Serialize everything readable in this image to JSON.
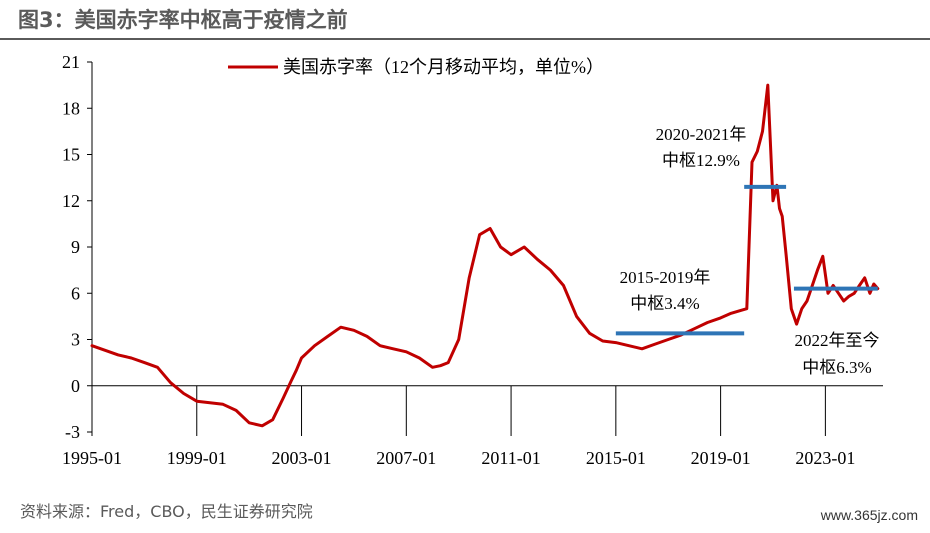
{
  "header": {
    "title": "图3：美国赤字率中枢高于疫情之前"
  },
  "footer": {
    "source": "资料来源：Fred，CBO，民生证券研究院",
    "watermark": "www.365jz.com"
  },
  "colors": {
    "series": "#c00000",
    "median": "#2e75b6",
    "axis": "#000000",
    "title": "#5a5a5a"
  },
  "chart_data": {
    "type": "line",
    "title": "",
    "xlabel": "",
    "ylabel": "",
    "ylim": [
      -3,
      21
    ],
    "y_ticks": [
      "21",
      "18",
      "15",
      "12",
      "9",
      "6",
      "3",
      "0",
      "-3"
    ],
    "x_range": [
      1995.0,
      2025.2
    ],
    "x_ticks": [
      {
        "x": 1995,
        "label": "1995-01"
      },
      {
        "x": 1999,
        "label": "1999-01"
      },
      {
        "x": 2003,
        "label": "2003-01"
      },
      {
        "x": 2007,
        "label": "2007-01"
      },
      {
        "x": 2011,
        "label": "2011-01"
      },
      {
        "x": 2015,
        "label": "2015-01"
      },
      {
        "x": 2019,
        "label": "2019-01"
      },
      {
        "x": 2023,
        "label": "2023-01"
      }
    ],
    "legend": {
      "position": "top",
      "label": "美国赤字率（12个月移动平均，单位%）"
    },
    "grid": false,
    "series": [
      {
        "name": "美国赤字率（12个月移动平均，单位%）",
        "x": [
          1995.0,
          1995.5,
          1996.0,
          1996.5,
          1997.0,
          1997.5,
          1998.0,
          1998.5,
          1999.0,
          1999.5,
          2000.0,
          2000.5,
          2001.0,
          2001.5,
          2001.9,
          2002.3,
          2002.6,
          2002.8,
          2003.0,
          2003.5,
          2004.0,
          2004.5,
          2005.0,
          2005.5,
          2006.0,
          2006.5,
          2007.0,
          2007.5,
          2008.0,
          2008.3,
          2008.6,
          2009.0,
          2009.4,
          2009.8,
          2010.2,
          2010.6,
          2011.0,
          2011.5,
          2012.0,
          2012.5,
          2013.0,
          2013.5,
          2014.0,
          2014.5,
          2015.0,
          2015.5,
          2016.0,
          2016.5,
          2017.0,
          2017.5,
          2018.0,
          2018.5,
          2019.0,
          2019.4,
          2019.8,
          2020.0,
          2020.2,
          2020.4,
          2020.6,
          2020.8,
          2021.0,
          2021.15,
          2021.25,
          2021.35,
          2021.5,
          2021.7,
          2021.9,
          2022.1,
          2022.3,
          2022.5,
          2022.7,
          2022.9,
          2023.1,
          2023.3,
          2023.5,
          2023.7,
          2023.9,
          2024.1,
          2024.3,
          2024.5,
          2024.7,
          2024.85,
          2025.0
        ],
        "y": [
          2.6,
          2.3,
          2.0,
          1.8,
          1.5,
          1.2,
          0.2,
          -0.5,
          -1.0,
          -1.1,
          -1.2,
          -1.6,
          -2.4,
          -2.6,
          -2.2,
          -0.8,
          0.3,
          1.0,
          1.8,
          2.6,
          3.2,
          3.8,
          3.6,
          3.2,
          2.6,
          2.4,
          2.2,
          1.8,
          1.2,
          1.3,
          1.5,
          3.0,
          7.0,
          9.8,
          10.2,
          9.0,
          8.5,
          9.0,
          8.2,
          7.5,
          6.5,
          4.5,
          3.4,
          2.9,
          2.8,
          2.6,
          2.4,
          2.7,
          3.0,
          3.3,
          3.7,
          4.1,
          4.4,
          4.7,
          4.9,
          5.0,
          14.5,
          15.2,
          16.5,
          19.5,
          12.0,
          13.0,
          11.5,
          11.0,
          8.5,
          5.0,
          4.0,
          5.0,
          5.5,
          6.5,
          7.5,
          8.4,
          6.0,
          6.5,
          6.0,
          5.5,
          5.8,
          6.0,
          6.5,
          7.0,
          6.0,
          6.6,
          6.3
        ]
      }
    ],
    "medians": [
      {
        "x_start": 2015.0,
        "x_end": 2019.9,
        "value": 3.4,
        "label_line1": "2015-2019年",
        "label_line2": "中枢3.4%"
      },
      {
        "x_start": 2019.9,
        "x_end": 2021.5,
        "value": 12.9,
        "label_line1": "2020-2021年",
        "label_line2": "中枢12.9%"
      },
      {
        "x_start": 2021.8,
        "x_end": 2025.0,
        "value": 6.3,
        "label_line1": "2022年至今",
        "label_line2": "中枢6.3%"
      }
    ]
  }
}
